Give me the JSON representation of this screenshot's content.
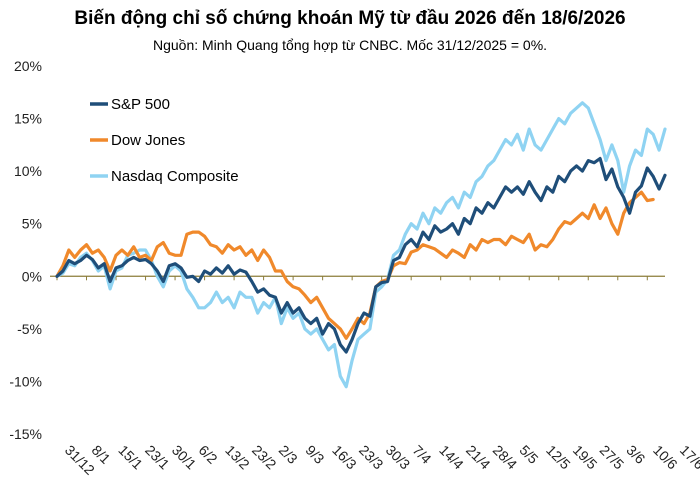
{
  "title": "Biến động chỉ số chứng khoán Mỹ từ đầu 2026 đến 18/6/2026",
  "subtitle": "Nguồn: Minh Quang tổng hợp từ CNBC. Mốc 31/12/2025 = 0%.",
  "colors": {
    "sp500": "#1f4e79",
    "dow": "#f0892b",
    "nasdaq": "#8fd3f2",
    "zero_line": "#8b7d3a"
  },
  "chart_data": {
    "type": "line",
    "title": "Biến động chỉ số chứng khoán Mỹ từ đầu 2026 đến 18/6/2026",
    "ylim": [
      -15,
      20
    ],
    "yticks": [
      -15,
      -10,
      -5,
      0,
      5,
      10,
      15,
      20
    ],
    "ytick_labels": [
      "-15%",
      "-10%",
      "-5%",
      "0%",
      "5%",
      "10%",
      "15%",
      "20%"
    ],
    "xtick_labels": [
      "31/12",
      "8/1",
      "15/1",
      "23/1",
      "30/1",
      "6/2",
      "13/2",
      "23/2",
      "2/3",
      "9/3",
      "16/3",
      "23/3",
      "30/3",
      "7/4",
      "14/4",
      "21/4",
      "28/4",
      "5/5",
      "12/5",
      "19/5",
      "27/5",
      "3/6",
      "10/6",
      "17/6"
    ],
    "legend": {
      "position": "top-left"
    },
    "grid": false,
    "series": [
      {
        "name": "S&P 500",
        "values": [
          0,
          0.5,
          1.5,
          1.2,
          1.5,
          2.0,
          1.6,
          0.8,
          1.2,
          -0.5,
          0.8,
          1.0,
          1.5,
          1.8,
          1.5,
          1.6,
          1.2,
          0.5,
          -0.5,
          1.0,
          1.2,
          0.8,
          -0.1,
          0.0,
          -0.5,
          0.5,
          0.2,
          0.8,
          0.3,
          1.0,
          0.2,
          0.6,
          0.4,
          -0.5,
          -1.5,
          -1.2,
          -1.8,
          -2.0,
          -3.5,
          -2.5,
          -3.5,
          -3.0,
          -4.0,
          -4.5,
          -4.0,
          -5.5,
          -4.5,
          -5.0,
          -6.5,
          -7.2,
          -6.0,
          -4.5,
          -3.5,
          -3.8,
          -1.0,
          -0.6,
          -0.5,
          1.5,
          1.8,
          3.0,
          3.5,
          2.8,
          4.2,
          3.5,
          4.8,
          4.2,
          4.5,
          5.0,
          4.0,
          5.5,
          5.0,
          6.5,
          6.0,
          7.0,
          6.5,
          7.5,
          8.5,
          8.0,
          8.5,
          7.8,
          9.0,
          8.0,
          7.2,
          8.5,
          8.0,
          9.5,
          9.0,
          10.0,
          10.5,
          10.0,
          11.0,
          10.8,
          11.2,
          9.2,
          10.2,
          8.5,
          7.5,
          6.0,
          8.0,
          8.6,
          10.3,
          9.5,
          8.3,
          9.6
        ]
      },
      {
        "name": "Dow Jones",
        "values": [
          0,
          1.0,
          2.5,
          1.8,
          2.5,
          3.0,
          2.2,
          2.5,
          1.8,
          0.5,
          2.0,
          2.5,
          2.0,
          2.8,
          1.8,
          2.0,
          1.5,
          2.8,
          3.2,
          2.2,
          2.0,
          2.0,
          4.0,
          4.2,
          4.2,
          3.8,
          3.0,
          2.8,
          2.2,
          3.0,
          2.5,
          2.8,
          2.0,
          2.5,
          1.5,
          2.5,
          1.8,
          0.5,
          0.5,
          -0.5,
          -1.0,
          -1.2,
          -1.8,
          -2.5,
          -2.0,
          -3.0,
          -4.0,
          -4.5,
          -5.0,
          -5.9,
          -5.0,
          -4.0,
          -4.5,
          -3.5,
          -1.0,
          -0.5,
          -0.3,
          1.0,
          1.3,
          1.2,
          2.3,
          2.5,
          3.0,
          2.8,
          2.6,
          2.2,
          1.8,
          2.5,
          2.2,
          1.8,
          3.0,
          2.5,
          3.5,
          3.2,
          3.5,
          3.5,
          3.0,
          3.8,
          3.5,
          3.2,
          4.0,
          2.5,
          3.0,
          2.8,
          3.5,
          4.5,
          5.2,
          5.0,
          5.5,
          6.0,
          5.5,
          6.8,
          5.5,
          6.5,
          5.0,
          4.0,
          6.0,
          7.0,
          7.5,
          8.0,
          7.2,
          7.3
        ]
      },
      {
        "name": "Nasdaq Composite",
        "values": [
          0,
          0.3,
          1.2,
          1.0,
          1.8,
          2.2,
          1.5,
          0.5,
          1.0,
          -1.2,
          0.5,
          0.8,
          2.0,
          2.2,
          2.5,
          2.5,
          1.5,
          0.0,
          -1.0,
          0.5,
          1.0,
          0.5,
          -1.2,
          -2.0,
          -3.0,
          -3.0,
          -2.5,
          -1.5,
          -2.5,
          -2.0,
          -3.0,
          -1.5,
          -2.0,
          -2.0,
          -3.5,
          -2.5,
          -3.0,
          -2.0,
          -4.5,
          -3.0,
          -4.0,
          -3.5,
          -5.0,
          -5.5,
          -5.0,
          -6.0,
          -7.0,
          -6.5,
          -9.5,
          -10.5,
          -8.0,
          -6.0,
          -5.5,
          -5.0,
          -1.5,
          -1.0,
          -0.3,
          2.0,
          2.5,
          4.0,
          5.0,
          4.5,
          6.0,
          5.0,
          6.5,
          6.0,
          7.0,
          7.5,
          6.5,
          8.0,
          7.5,
          9.0,
          9.5,
          10.5,
          11.0,
          12.0,
          13.0,
          12.5,
          13.5,
          12.0,
          14.0,
          12.5,
          12.0,
          13.0,
          14.0,
          15.0,
          14.5,
          15.5,
          16.0,
          16.5,
          16.0,
          14.5,
          13.0,
          11.0,
          12.5,
          11.0,
          8.0,
          10.5,
          12.0,
          11.5,
          14.0,
          13.5,
          12.0,
          14.0
        ]
      }
    ]
  }
}
